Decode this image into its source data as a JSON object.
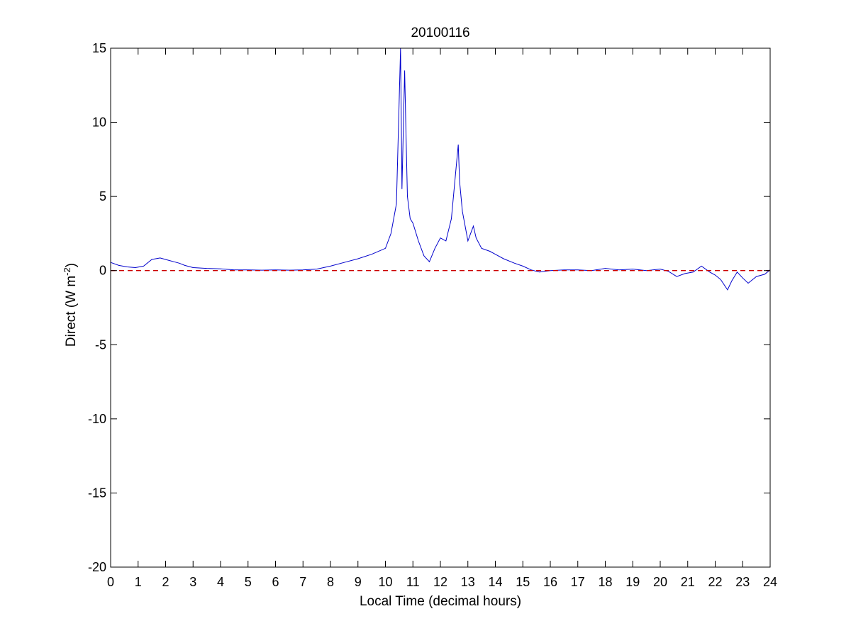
{
  "chart_data": {
    "type": "line",
    "title": "20100116",
    "xlabel": "Local Time (decimal hours)",
    "ylabel": {
      "prefix": "Direct (W m",
      "superscript": "-2",
      "suffix": ")"
    },
    "xlim": [
      0,
      24
    ],
    "ylim": [
      -20,
      15
    ],
    "xticks": [
      0,
      1,
      2,
      3,
      4,
      5,
      6,
      7,
      8,
      9,
      10,
      11,
      12,
      13,
      14,
      15,
      16,
      17,
      18,
      19,
      20,
      21,
      22,
      23,
      24
    ],
    "yticks": [
      -20,
      -15,
      -10,
      -5,
      0,
      5,
      10,
      15
    ],
    "grid": false,
    "legend": "none",
    "series": [
      {
        "color": "#0000cc",
        "style": "solid",
        "x": [
          0,
          0.3,
          0.6,
          0.9,
          1.2,
          1.5,
          1.8,
          2.1,
          2.3,
          2.5,
          2.7,
          3.0,
          3.5,
          4.0,
          4.5,
          5.0,
          5.5,
          6.0,
          6.5,
          7.0,
          7.5,
          8.0,
          8.5,
          9.0,
          9.5,
          10.0,
          10.2,
          10.4,
          10.5,
          10.55,
          10.6,
          10.7,
          10.75,
          10.8,
          10.9,
          11.0,
          11.2,
          11.4,
          11.6,
          11.8,
          12.0,
          12.2,
          12.4,
          12.55,
          12.65,
          12.7,
          12.8,
          12.9,
          13.0,
          13.1,
          13.2,
          13.3,
          13.5,
          13.8,
          14.0,
          14.3,
          14.7,
          15.0,
          15.3,
          15.6,
          16.0,
          16.5,
          17.0,
          17.5,
          18.0,
          18.5,
          19.0,
          19.5,
          20.0,
          20.3,
          20.6,
          20.9,
          21.2,
          21.5,
          21.8,
          22.0,
          22.2,
          22.45,
          22.6,
          22.8,
          23.0,
          23.2,
          23.5,
          23.8,
          24.0
        ],
        "y": [
          0.55,
          0.35,
          0.25,
          0.2,
          0.3,
          0.75,
          0.85,
          0.7,
          0.6,
          0.5,
          0.35,
          0.2,
          0.15,
          0.12,
          0.05,
          0.05,
          0.03,
          0.05,
          0.03,
          0.05,
          0.1,
          0.3,
          0.55,
          0.8,
          1.1,
          1.5,
          2.5,
          4.5,
          11.5,
          15.0,
          5.5,
          13.5,
          9.0,
          5.0,
          3.5,
          3.2,
          2.0,
          1.0,
          0.6,
          1.5,
          2.2,
          2.0,
          3.5,
          6.5,
          8.5,
          6.0,
          4.0,
          3.0,
          2.0,
          2.5,
          3.0,
          2.2,
          1.5,
          1.3,
          1.1,
          0.8,
          0.5,
          0.3,
          0.05,
          -0.1,
          0.0,
          0.05,
          0.05,
          0.0,
          0.15,
          0.05,
          0.1,
          0.0,
          0.1,
          -0.05,
          -0.4,
          -0.2,
          -0.1,
          0.3,
          -0.1,
          -0.3,
          -0.6,
          -1.3,
          -0.7,
          -0.1,
          -0.5,
          -0.85,
          -0.4,
          -0.25,
          0.05
        ]
      },
      {
        "color": "#cc0000",
        "style": "dashed",
        "x": [
          0,
          24
        ],
        "y": [
          0,
          0
        ]
      }
    ]
  }
}
